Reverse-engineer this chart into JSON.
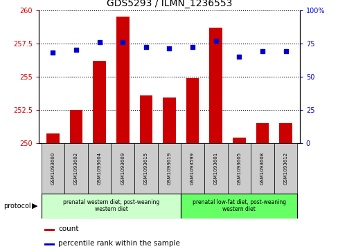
{
  "title": "GDS5293 / ILMN_1236553",
  "samples": [
    "GSM1093600",
    "GSM1093602",
    "GSM1093604",
    "GSM1093609",
    "GSM1093615",
    "GSM1093619",
    "GSM1093599",
    "GSM1093601",
    "GSM1093605",
    "GSM1093608",
    "GSM1093612"
  ],
  "bar_values": [
    250.7,
    252.5,
    256.2,
    259.5,
    253.6,
    253.4,
    254.9,
    258.7,
    250.4,
    251.5,
    251.5
  ],
  "percentile_values": [
    68,
    70,
    76,
    76,
    72,
    71,
    72,
    77,
    65,
    69,
    69
  ],
  "ylim_left": [
    250,
    260
  ],
  "ylim_right": [
    0,
    100
  ],
  "yticks_left": [
    250,
    252.5,
    255,
    257.5,
    260
  ],
  "yticks_right": [
    0,
    25,
    50,
    75,
    100
  ],
  "bar_color": "#cc0000",
  "dot_color": "#0000cc",
  "group1_label": "prenatal western diet, post-weaning\nwestern diet",
  "group2_label": "prenatal low-fat diet, post-weaning\nwestern diet",
  "group1_count": 6,
  "group2_count": 5,
  "group1_color": "#ccffcc",
  "group2_color": "#66ff66",
  "protocol_label": "protocol",
  "legend_bar_label": "count",
  "legend_dot_label": "percentile rank within the sample",
  "plot_bg_color": "#ffffff",
  "grid_color": "#000000",
  "tick_label_color_left": "#cc0000",
  "tick_label_color_right": "#0000cc",
  "sample_box_color": "#cccccc"
}
